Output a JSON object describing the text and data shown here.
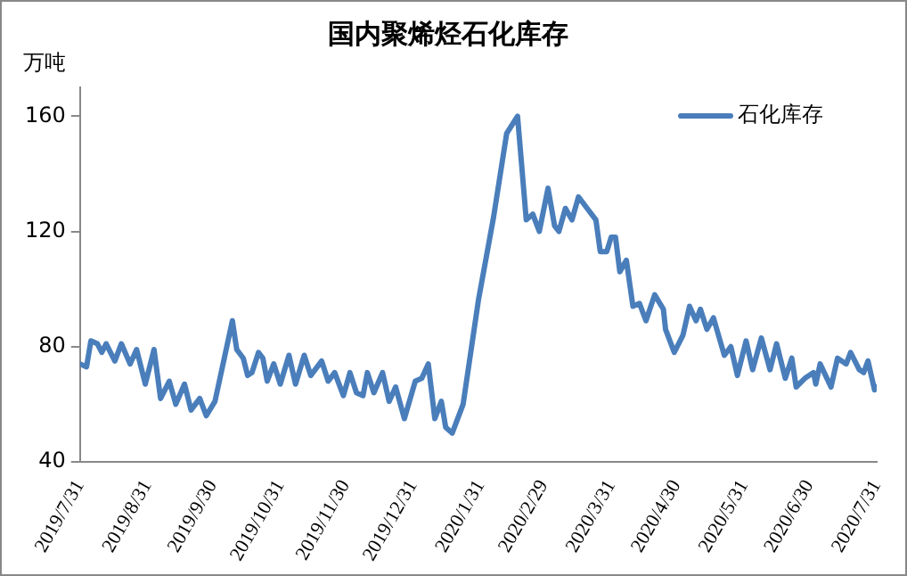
{
  "chart_data": {
    "type": "line",
    "title": "国内聚烯烃石化库存",
    "ylabel": "万吨",
    "legend": "top right",
    "grid": false,
    "marker": "none",
    "xlim": [
      "2019-07-31",
      "2020-07-31"
    ],
    "xticks": [
      {
        "value": "2019-07-31",
        "label": "2019/7/31"
      },
      {
        "value": "2019-08-31",
        "label": "2019/8/31"
      },
      {
        "value": "2019-09-30",
        "label": "2019/9/30"
      },
      {
        "value": "2019-10-31",
        "label": "2019/10/31"
      },
      {
        "value": "2019-11-30",
        "label": "2019/11/30"
      },
      {
        "value": "2019-12-31",
        "label": "2019/12/31"
      },
      {
        "value": "2020-01-31",
        "label": "2020/1/31"
      },
      {
        "value": "2020-02-29",
        "label": "2020/2/29"
      },
      {
        "value": "2020-03-31",
        "label": "2020/3/31"
      },
      {
        "value": "2020-04-30",
        "label": "2020/4/30"
      },
      {
        "value": "2020-05-31",
        "label": "2020/5/31"
      },
      {
        "value": "2020-06-30",
        "label": "2020/6/30"
      },
      {
        "value": "2020-07-31",
        "label": "2020/7/31"
      }
    ],
    "ylim": [
      40,
      170
    ],
    "yticks": [
      40,
      80,
      120,
      160
    ],
    "x": [
      "2019-07-31",
      "2019-08-03",
      "2019-08-05",
      "2019-08-08",
      "2019-08-10",
      "2019-08-12",
      "2019-08-16",
      "2019-08-19",
      "2019-08-23",
      "2019-08-26",
      "2019-08-30",
      "2019-09-03",
      "2019-09-06",
      "2019-09-10",
      "2019-09-13",
      "2019-09-17",
      "2019-09-20",
      "2019-09-24",
      "2019-09-27",
      "2019-10-01",
      "2019-10-09",
      "2019-10-11",
      "2019-10-14",
      "2019-10-16",
      "2019-10-18",
      "2019-10-21",
      "2019-10-23",
      "2019-10-25",
      "2019-10-28",
      "2019-10-31",
      "2019-11-04",
      "2019-11-07",
      "2019-11-11",
      "2019-11-14",
      "2019-11-19",
      "2019-11-22",
      "2019-11-25",
      "2019-11-29",
      "2019-12-02",
      "2019-12-05",
      "2019-12-08",
      "2019-12-10",
      "2019-12-13",
      "2019-12-17",
      "2019-12-20",
      "2019-12-23",
      "2019-12-27",
      "2020-01-01",
      "2020-01-04",
      "2020-01-07",
      "2020-01-10",
      "2020-01-13",
      "2020-01-15",
      "2020-01-18",
      "2020-01-22",
      "2020-01-23",
      "2020-01-30",
      "2020-02-06",
      "2020-02-12",
      "2020-02-17",
      "2020-02-21",
      "2020-02-24",
      "2020-02-27",
      "2020-03-02",
      "2020-03-05",
      "2020-03-07",
      "2020-03-10",
      "2020-03-13",
      "2020-03-16",
      "2020-03-20",
      "2020-03-24",
      "2020-03-26",
      "2020-03-29",
      "2020-03-31",
      "2020-04-02",
      "2020-04-04",
      "2020-04-07",
      "2020-04-10",
      "2020-04-13",
      "2020-04-16",
      "2020-04-20",
      "2020-04-24",
      "2020-04-25",
      "2020-04-29",
      "2020-05-03",
      "2020-05-06",
      "2020-05-09",
      "2020-05-11",
      "2020-05-14",
      "2020-05-17",
      "2020-05-22",
      "2020-05-25",
      "2020-05-28",
      "2020-06-01",
      "2020-06-04",
      "2020-06-08",
      "2020-06-12",
      "2020-06-15",
      "2020-06-19",
      "2020-06-22",
      "2020-06-24",
      "2020-06-28",
      "2020-07-02",
      "2020-07-03",
      "2020-07-05",
      "2020-07-10",
      "2020-07-13",
      "2020-07-17",
      "2020-07-19",
      "2020-07-23",
      "2020-07-25",
      "2020-07-27",
      "2020-07-30",
      "2020-07-31"
    ],
    "series": [
      {
        "name": "石化库存",
        "color": "#4a7ebb",
        "values": [
          74,
          73,
          82,
          81,
          78,
          81,
          75,
          81,
          74,
          79,
          67,
          79,
          62,
          68,
          60,
          67,
          58,
          62,
          56,
          61,
          89,
          79,
          76,
          70,
          71,
          78,
          76,
          68,
          74,
          67,
          77,
          67,
          77,
          70,
          75,
          68,
          71,
          63,
          71,
          64,
          63,
          71,
          64,
          71,
          61,
          66,
          55,
          68,
          69,
          74,
          55,
          61,
          52,
          50,
          58,
          60,
          96,
          125,
          154,
          160,
          124,
          126,
          120,
          135,
          122,
          120,
          128,
          124,
          132,
          128,
          124,
          113,
          113,
          118,
          118,
          106,
          110,
          94,
          95,
          89,
          98,
          93,
          86,
          78,
          84,
          94,
          89,
          93,
          86,
          90,
          77,
          80,
          70,
          82,
          72,
          83,
          72,
          81,
          69,
          76,
          66,
          69,
          71,
          67,
          74,
          66,
          76,
          74,
          78,
          72,
          71,
          75,
          65,
          66
        ]
      }
    ]
  }
}
